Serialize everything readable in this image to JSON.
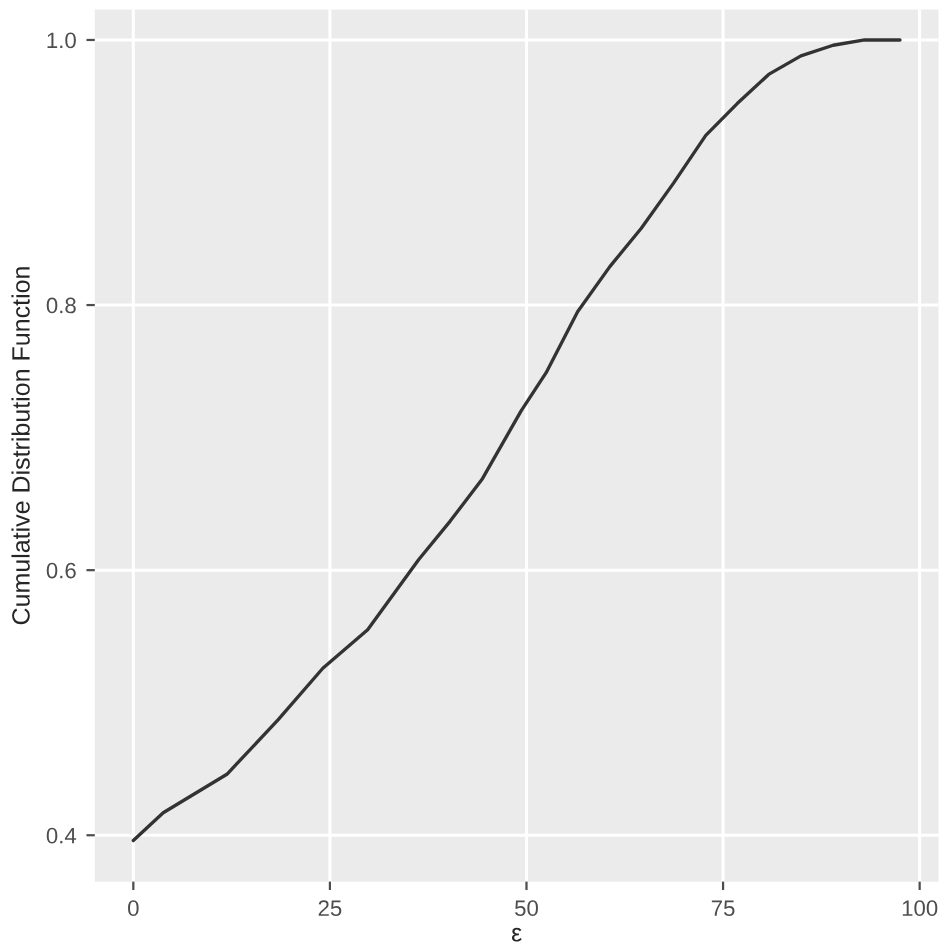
{
  "chart_data": {
    "type": "line",
    "xlabel": "ε",
    "ylabel": "Cumulative Distribution Function",
    "x": [
      0,
      3.8,
      11.9,
      18.4,
      24.1,
      29.8,
      36.3,
      40.3,
      44.4,
      49.3,
      52.5,
      56.5,
      60.6,
      64.6,
      68.7,
      72.8,
      76.8,
      80.8,
      84.9,
      89,
      93,
      97.5
    ],
    "series": [
      {
        "color": "#333333",
        "values": [
          0.396,
          0.417,
          0.446,
          0.487,
          0.526,
          0.555,
          0.608,
          0.637,
          0.669,
          0.72,
          0.749,
          0.795,
          0.829,
          0.858,
          0.892,
          0.928,
          0.952,
          0.974,
          0.988,
          0.996,
          1.0,
          1.0
        ]
      }
    ],
    "xlim": [
      -4.9,
      102.4
    ],
    "ylim": [
      0.365,
      1.023
    ],
    "xticks": [
      0,
      25,
      50,
      75,
      100
    ],
    "yticks": [
      0.4,
      0.6,
      0.8,
      {
        "value": 1.0,
        "label": "1.0"
      }
    ],
    "grid": true
  }
}
